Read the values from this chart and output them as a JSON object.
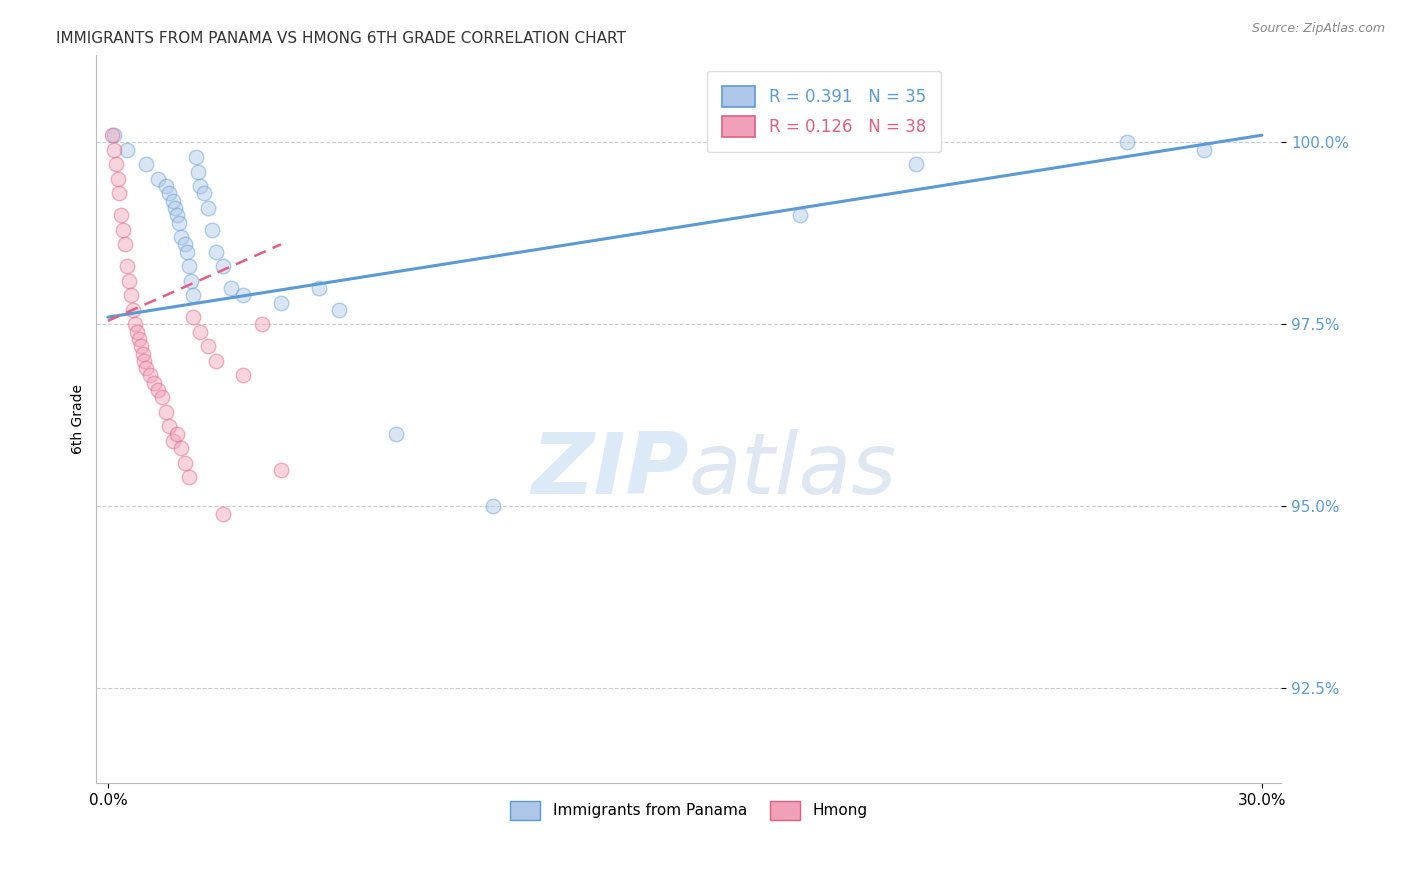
{
  "title": "IMMIGRANTS FROM PANAMA VS HMONG 6TH GRADE CORRELATION CHART",
  "source_text": "Source: ZipAtlas.com",
  "xlabel": "",
  "ylabel": "6th Grade",
  "xlim": [
    -0.3,
    30.5
  ],
  "ylim": [
    91.2,
    101.2
  ],
  "x_tick_labels": [
    "0.0%",
    "30.0%"
  ],
  "x_tick_vals": [
    0.0,
    30.0
  ],
  "y_ticks": [
    92.5,
    95.0,
    97.5,
    100.0
  ],
  "y_tick_labels": [
    "92.5%",
    "95.0%",
    "97.5%",
    "100.0%"
  ],
  "R_blue": 0.391,
  "N_blue": 35,
  "R_pink": 0.126,
  "N_pink": 38,
  "blue_scatter_x": [
    0.15,
    0.5,
    1.0,
    1.3,
    1.5,
    1.6,
    1.7,
    1.75,
    1.8,
    1.85,
    1.9,
    2.0,
    2.05,
    2.1,
    2.15,
    2.2,
    2.3,
    2.35,
    2.4,
    2.5,
    2.6,
    2.7,
    2.8,
    3.0,
    3.2,
    3.5,
    4.5,
    5.5,
    6.0,
    7.5,
    10.0,
    18.0,
    21.0,
    26.5,
    28.5
  ],
  "blue_scatter_y": [
    100.1,
    99.9,
    99.7,
    99.5,
    99.4,
    99.3,
    99.2,
    99.1,
    99.0,
    98.9,
    98.7,
    98.6,
    98.5,
    98.3,
    98.1,
    97.9,
    99.8,
    99.6,
    99.4,
    99.3,
    99.1,
    98.8,
    98.5,
    98.3,
    98.0,
    97.9,
    97.8,
    98.0,
    97.7,
    96.0,
    95.0,
    99.0,
    99.7,
    100.0,
    99.9
  ],
  "pink_scatter_x": [
    0.1,
    0.15,
    0.2,
    0.25,
    0.3,
    0.35,
    0.4,
    0.45,
    0.5,
    0.55,
    0.6,
    0.65,
    0.7,
    0.75,
    0.8,
    0.85,
    0.9,
    0.95,
    1.0,
    1.1,
    1.2,
    1.3,
    1.4,
    1.5,
    1.6,
    1.7,
    1.8,
    1.9,
    2.0,
    2.1,
    2.2,
    2.4,
    2.6,
    2.8,
    3.0,
    3.5,
    4.0,
    4.5
  ],
  "pink_scatter_y": [
    100.1,
    99.9,
    99.7,
    99.5,
    99.3,
    99.0,
    98.8,
    98.6,
    98.3,
    98.1,
    97.9,
    97.7,
    97.5,
    97.4,
    97.3,
    97.2,
    97.1,
    97.0,
    96.9,
    96.8,
    96.7,
    96.6,
    96.5,
    96.3,
    96.1,
    95.9,
    96.0,
    95.8,
    95.6,
    95.4,
    97.6,
    97.4,
    97.2,
    97.0,
    94.9,
    96.8,
    97.5,
    95.5
  ],
  "blue_line_x": [
    0.0,
    30.0
  ],
  "blue_line_y": [
    97.6,
    100.1
  ],
  "pink_line_x": [
    0.0,
    4.5
  ],
  "pink_line_y": [
    97.55,
    98.6
  ],
  "scatter_size": 110,
  "scatter_alpha": 0.45,
  "scatter_linewidth": 1.0,
  "blue_color": "#5b9bd5",
  "pink_color": "#e06080",
  "blue_fill": "#aec6e8",
  "pink_fill": "#f0a0b8",
  "watermark_zip": "ZIP",
  "watermark_atlas": "atlas",
  "background_color": "#ffffff",
  "grid_color": "#cccccc"
}
